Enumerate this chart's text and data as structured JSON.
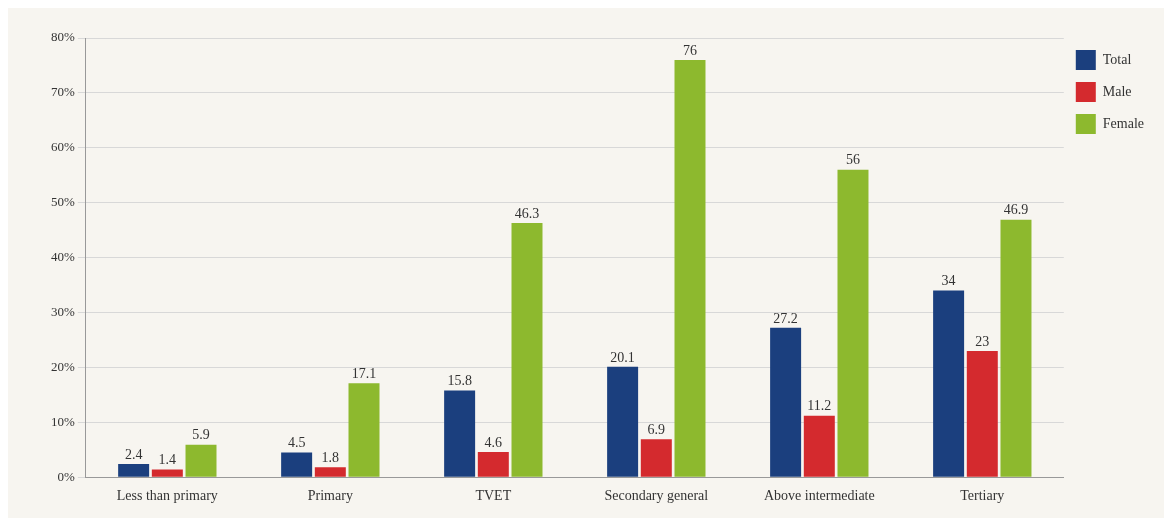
{
  "chart_data": {
    "type": "bar",
    "categories": [
      "Less than primary",
      "Primary",
      "TVET",
      "Secondary general",
      "Above intermediate",
      "Tertiary"
    ],
    "series": [
      {
        "name": "Total",
        "color": "#1b3f7e",
        "values": [
          2.4,
          4.5,
          15.8,
          20.1,
          27.2,
          34
        ]
      },
      {
        "name": "Male",
        "color": "#d42a2e",
        "values": [
          1.4,
          1.8,
          4.6,
          6.9,
          11.2,
          23
        ]
      },
      {
        "name": "Female",
        "color": "#8db92e",
        "values": [
          5.9,
          17.1,
          46.3,
          76,
          56,
          46.9
        ]
      }
    ],
    "ylim": [
      0,
      80
    ],
    "yticks": [
      {
        "value": 0,
        "label": "0%"
      },
      {
        "value": 10,
        "label": "10%"
      },
      {
        "value": 20,
        "label": "20%"
      },
      {
        "value": 30,
        "label": "30%"
      },
      {
        "value": 40,
        "label": "40%"
      },
      {
        "value": 50,
        "label": "50%"
      },
      {
        "value": 60,
        "label": "60%"
      },
      {
        "value": 70,
        "label": "70%"
      },
      {
        "value": 80,
        "label": "80%"
      }
    ],
    "grid": "y",
    "legend": "top right",
    "data_labels": true
  }
}
